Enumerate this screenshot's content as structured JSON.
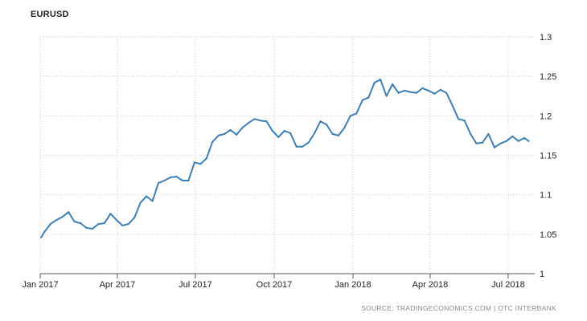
{
  "chart_data": {
    "type": "line",
    "title": "EURUSD",
    "source": "SOURCE: TRADINGECONOMICS.COM | OTC INTERBANK",
    "xlabel": "",
    "ylabel": "",
    "ylim": [
      1.0,
      1.3
    ],
    "xlim": [
      "2017-01-01",
      "2018-08-01"
    ],
    "grid": true,
    "yaxis_side": "right",
    "line_color": "#3f7fb2",
    "y_ticks": [
      {
        "value": 1.0,
        "label": "1"
      },
      {
        "value": 1.05,
        "label": "1.05"
      },
      {
        "value": 1.1,
        "label": "1.1"
      },
      {
        "value": 1.15,
        "label": "1.15"
      },
      {
        "value": 1.2,
        "label": "1.2"
      },
      {
        "value": 1.25,
        "label": "1.25"
      },
      {
        "value": 1.3,
        "label": "1.3"
      }
    ],
    "x_ticks": [
      {
        "date": "2017-01-01",
        "label": "Jan 2017"
      },
      {
        "date": "2017-04-01",
        "label": "Apr 2017"
      },
      {
        "date": "2017-07-01",
        "label": "Jul 2017"
      },
      {
        "date": "2017-10-01",
        "label": "Oct 2017"
      },
      {
        "date": "2018-01-01",
        "label": "Jan 2018"
      },
      {
        "date": "2018-04-01",
        "label": "Apr 2018"
      },
      {
        "date": "2018-07-01",
        "label": "Jul 2018"
      }
    ],
    "series": [
      {
        "points": [
          [
            "2017-01-02",
            1.046
          ],
          [
            "2017-01-06",
            1.053
          ],
          [
            "2017-01-13",
            1.063
          ],
          [
            "2017-01-20",
            1.068
          ],
          [
            "2017-01-27",
            1.072
          ],
          [
            "2017-02-03",
            1.078
          ],
          [
            "2017-02-10",
            1.066
          ],
          [
            "2017-02-17",
            1.064
          ],
          [
            "2017-02-24",
            1.058
          ],
          [
            "2017-03-03",
            1.057
          ],
          [
            "2017-03-10",
            1.063
          ],
          [
            "2017-03-17",
            1.064
          ],
          [
            "2017-03-24",
            1.076
          ],
          [
            "2017-03-31",
            1.068
          ],
          [
            "2017-04-07",
            1.061
          ],
          [
            "2017-04-14",
            1.063
          ],
          [
            "2017-04-21",
            1.071
          ],
          [
            "2017-04-28",
            1.09
          ],
          [
            "2017-05-05",
            1.098
          ],
          [
            "2017-05-12",
            1.092
          ],
          [
            "2017-05-19",
            1.115
          ],
          [
            "2017-05-26",
            1.118
          ],
          [
            "2017-06-02",
            1.122
          ],
          [
            "2017-06-09",
            1.123
          ],
          [
            "2017-06-16",
            1.118
          ],
          [
            "2017-06-23",
            1.118
          ],
          [
            "2017-06-30",
            1.141
          ],
          [
            "2017-07-07",
            1.139
          ],
          [
            "2017-07-14",
            1.146
          ],
          [
            "2017-07-21",
            1.167
          ],
          [
            "2017-07-28",
            1.175
          ],
          [
            "2017-08-04",
            1.177
          ],
          [
            "2017-08-11",
            1.182
          ],
          [
            "2017-08-18",
            1.176
          ],
          [
            "2017-08-25",
            1.185
          ],
          [
            "2017-09-01",
            1.191
          ],
          [
            "2017-09-08",
            1.196
          ],
          [
            "2017-09-15",
            1.194
          ],
          [
            "2017-09-22",
            1.193
          ],
          [
            "2017-09-29",
            1.181
          ],
          [
            "2017-10-06",
            1.173
          ],
          [
            "2017-10-13",
            1.181
          ],
          [
            "2017-10-20",
            1.178
          ],
          [
            "2017-10-27",
            1.161
          ],
          [
            "2017-11-03",
            1.161
          ],
          [
            "2017-11-10",
            1.166
          ],
          [
            "2017-11-17",
            1.178
          ],
          [
            "2017-11-24",
            1.193
          ],
          [
            "2017-12-01",
            1.189
          ],
          [
            "2017-12-08",
            1.177
          ],
          [
            "2017-12-15",
            1.175
          ],
          [
            "2017-12-22",
            1.185
          ],
          [
            "2017-12-29",
            1.2
          ],
          [
            "2018-01-05",
            1.203
          ],
          [
            "2018-01-12",
            1.22
          ],
          [
            "2018-01-19",
            1.223
          ],
          [
            "2018-01-26",
            1.242
          ],
          [
            "2018-02-02",
            1.246
          ],
          [
            "2018-02-09",
            1.225
          ],
          [
            "2018-02-16",
            1.24
          ],
          [
            "2018-02-23",
            1.229
          ],
          [
            "2018-03-02",
            1.232
          ],
          [
            "2018-03-09",
            1.23
          ],
          [
            "2018-03-16",
            1.229
          ],
          [
            "2018-03-23",
            1.235
          ],
          [
            "2018-03-30",
            1.232
          ],
          [
            "2018-04-06",
            1.228
          ],
          [
            "2018-04-13",
            1.233
          ],
          [
            "2018-04-20",
            1.229
          ],
          [
            "2018-04-27",
            1.213
          ],
          [
            "2018-05-04",
            1.196
          ],
          [
            "2018-05-11",
            1.194
          ],
          [
            "2018-05-18",
            1.177
          ],
          [
            "2018-05-25",
            1.165
          ],
          [
            "2018-06-01",
            1.166
          ],
          [
            "2018-06-08",
            1.177
          ],
          [
            "2018-06-15",
            1.16
          ],
          [
            "2018-06-22",
            1.165
          ],
          [
            "2018-06-29",
            1.168
          ],
          [
            "2018-07-06",
            1.174
          ],
          [
            "2018-07-13",
            1.168
          ],
          [
            "2018-07-20",
            1.172
          ],
          [
            "2018-07-25",
            1.168
          ]
        ]
      }
    ]
  }
}
